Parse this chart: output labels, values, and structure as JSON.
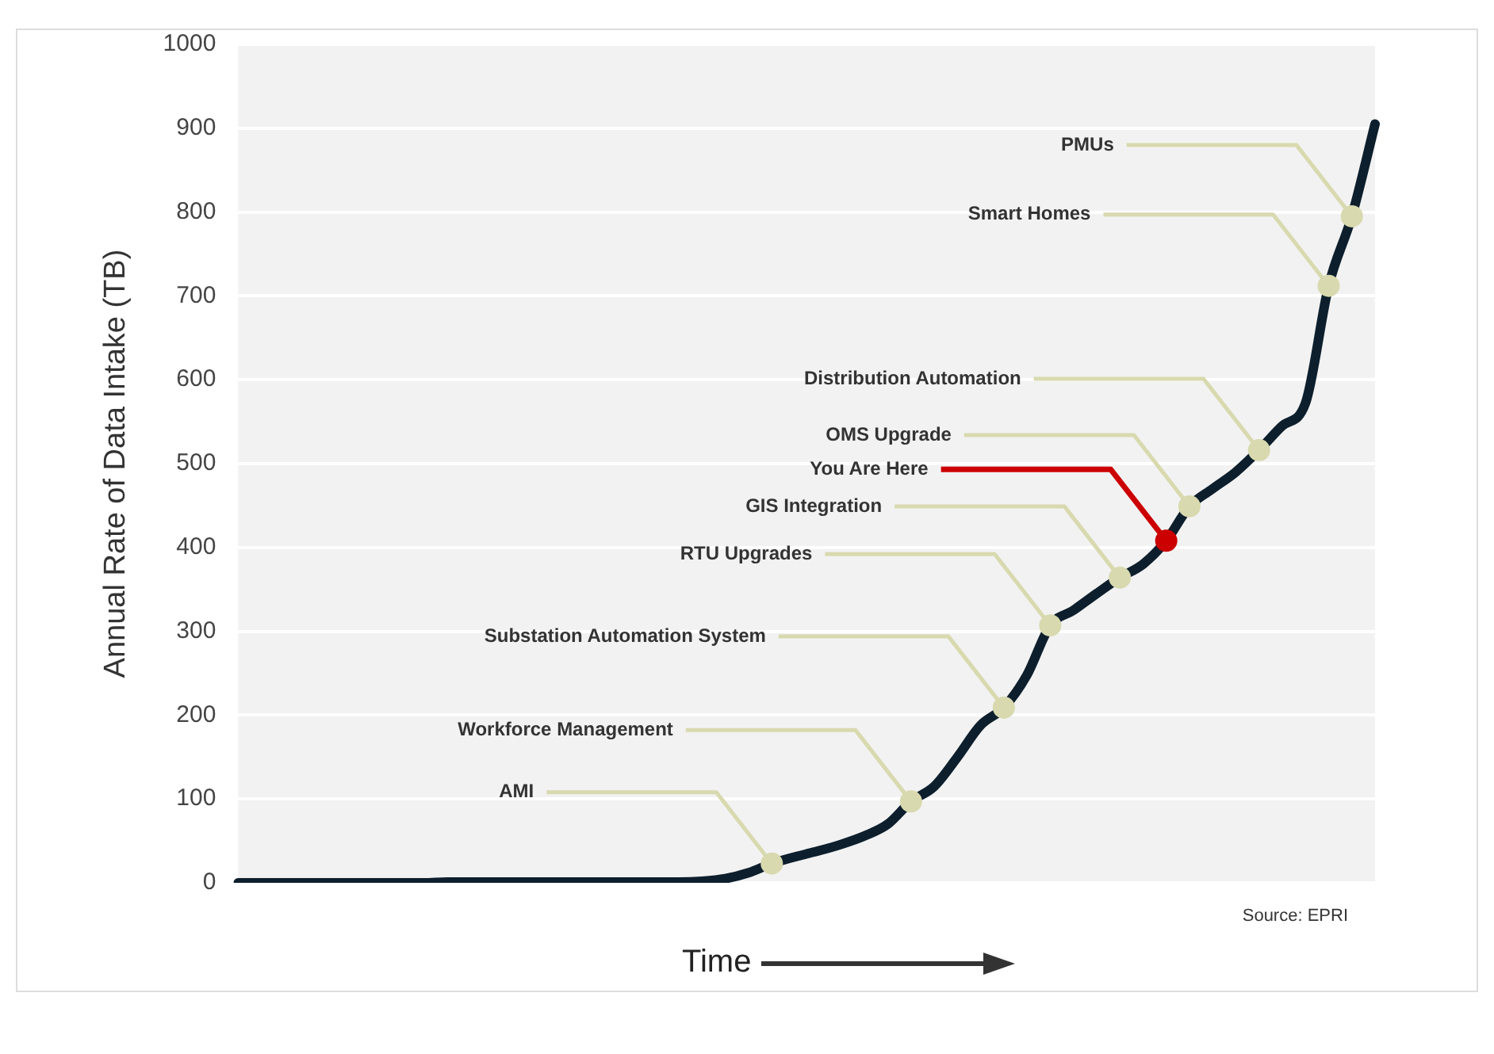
{
  "chart_data": {
    "type": "line",
    "ylabel": "Annual Rate of Data Intake (TB)",
    "xlabel": "Time",
    "categories": [
      null,
      null,
      null,
      null,
      null,
      null,
      null,
      null,
      null,
      null,
      null,
      null,
      null,
      null,
      null,
      null,
      null,
      null,
      null,
      null,
      null,
      null,
      null,
      null,
      null,
      null,
      null,
      null,
      null,
      null,
      null,
      null,
      null,
      null,
      null,
      null,
      null,
      null,
      null,
      null,
      null,
      null,
      null,
      null,
      null,
      null,
      null,
      null,
      null,
      null
    ],
    "series": [
      {
        "color": "#0d1f2d",
        "marker": "none",
        "values": [
          0,
          0,
          0,
          0,
          0,
          0,
          0,
          0,
          0,
          1,
          1,
          1,
          1,
          1,
          1,
          1,
          1,
          1,
          1,
          1,
          2,
          5,
          12,
          23,
          31,
          38,
          46,
          56,
          70,
          97,
          115,
          150,
          188,
          209,
          248,
          307,
          325,
          345,
          364,
          380,
          408,
          449,
          470,
          490,
          516,
          545,
          572,
          712,
          795,
          905
        ]
      },
      {
        "type": "scatter",
        "marker": "circle",
        "name": "AMI",
        "color": "#d8d9ae",
        "values": [
          null,
          null,
          null,
          null,
          null,
          null,
          null,
          null,
          null,
          null,
          null,
          null,
          null,
          null,
          null,
          null,
          null,
          null,
          null,
          null,
          null,
          null,
          null,
          23,
          null,
          null,
          null,
          null,
          null,
          null,
          null,
          null,
          null,
          null,
          null,
          null,
          null,
          null,
          null,
          null,
          null,
          null,
          null,
          null,
          null,
          null,
          null,
          null,
          null,
          null
        ]
      },
      {
        "type": "scatter",
        "marker": "circle",
        "name": "Workforce Management",
        "color": "#d8d9ae",
        "values": [
          null,
          null,
          null,
          null,
          null,
          null,
          null,
          null,
          null,
          null,
          null,
          null,
          null,
          null,
          null,
          null,
          null,
          null,
          null,
          null,
          null,
          null,
          null,
          null,
          null,
          null,
          null,
          null,
          null,
          97,
          null,
          null,
          null,
          null,
          null,
          null,
          null,
          null,
          null,
          null,
          null,
          null,
          null,
          null,
          null,
          null,
          null,
          null,
          null,
          null
        ]
      },
      {
        "type": "scatter",
        "marker": "circle",
        "name": "Substation Automation System",
        "color": "#d8d9ae",
        "values": [
          null,
          null,
          null,
          null,
          null,
          null,
          null,
          null,
          null,
          null,
          null,
          null,
          null,
          null,
          null,
          null,
          null,
          null,
          null,
          null,
          null,
          null,
          null,
          null,
          null,
          null,
          null,
          null,
          null,
          null,
          null,
          null,
          null,
          209,
          null,
          null,
          null,
          null,
          null,
          null,
          null,
          null,
          null,
          null,
          null,
          null,
          null,
          null,
          null,
          null
        ]
      },
      {
        "type": "scatter",
        "marker": "circle",
        "name": "RTU Upgrades",
        "color": "#d8d9ae",
        "values": [
          null,
          null,
          null,
          null,
          null,
          null,
          null,
          null,
          null,
          null,
          null,
          null,
          null,
          null,
          null,
          null,
          null,
          null,
          null,
          null,
          null,
          null,
          null,
          null,
          null,
          null,
          null,
          null,
          null,
          null,
          null,
          null,
          null,
          null,
          null,
          307,
          null,
          null,
          null,
          null,
          null,
          null,
          null,
          null,
          null,
          null,
          null,
          null,
          null,
          null
        ]
      },
      {
        "type": "scatter",
        "marker": "circle",
        "name": "GIS Integration",
        "color": "#d8d9ae",
        "values": [
          null,
          null,
          null,
          null,
          null,
          null,
          null,
          null,
          null,
          null,
          null,
          null,
          null,
          null,
          null,
          null,
          null,
          null,
          null,
          null,
          null,
          null,
          null,
          null,
          null,
          null,
          null,
          null,
          null,
          null,
          null,
          null,
          null,
          null,
          null,
          null,
          null,
          null,
          364,
          null,
          null,
          null,
          null,
          null,
          null,
          null,
          null,
          null,
          null,
          null
        ]
      },
      {
        "type": "scatter",
        "marker": "circle",
        "name": "You Are Here",
        "color": "#cc0000",
        "values": [
          null,
          null,
          null,
          null,
          null,
          null,
          null,
          null,
          null,
          null,
          null,
          null,
          null,
          null,
          null,
          null,
          null,
          null,
          null,
          null,
          null,
          null,
          null,
          null,
          null,
          null,
          null,
          null,
          null,
          null,
          null,
          null,
          null,
          null,
          null,
          null,
          null,
          null,
          null,
          null,
          408,
          null,
          null,
          null,
          null,
          null,
          null,
          null,
          null,
          null
        ]
      },
      {
        "type": "scatter",
        "marker": "circle",
        "name": "OMS Upgrade",
        "color": "#d8d9ae",
        "values": [
          null,
          null,
          null,
          null,
          null,
          null,
          null,
          null,
          null,
          null,
          null,
          null,
          null,
          null,
          null,
          null,
          null,
          null,
          null,
          null,
          null,
          null,
          null,
          null,
          null,
          null,
          null,
          null,
          null,
          null,
          null,
          null,
          null,
          null,
          null,
          null,
          null,
          null,
          null,
          null,
          null,
          449,
          null,
          null,
          null,
          null,
          null,
          null,
          null,
          null
        ]
      },
      {
        "type": "scatter",
        "marker": "circle",
        "name": "Distribution Automation",
        "color": "#d8d9ae",
        "values": [
          null,
          null,
          null,
          null,
          null,
          null,
          null,
          null,
          null,
          null,
          null,
          null,
          null,
          null,
          null,
          null,
          null,
          null,
          null,
          null,
          null,
          null,
          null,
          null,
          null,
          null,
          null,
          null,
          null,
          null,
          null,
          null,
          null,
          null,
          null,
          null,
          null,
          null,
          null,
          null,
          null,
          null,
          null,
          null,
          516,
          null,
          null,
          null,
          null,
          null
        ]
      },
      {
        "type": "scatter",
        "marker": "circle",
        "name": "Smart Homes",
        "color": "#d8d9ae",
        "values": [
          null,
          null,
          null,
          null,
          null,
          null,
          null,
          null,
          null,
          null,
          null,
          null,
          null,
          null,
          null,
          null,
          null,
          null,
          null,
          null,
          null,
          null,
          null,
          null,
          null,
          null,
          null,
          null,
          null,
          null,
          null,
          null,
          null,
          null,
          null,
          null,
          null,
          null,
          null,
          null,
          null,
          null,
          null,
          null,
          null,
          null,
          null,
          712,
          null,
          null
        ]
      },
      {
        "type": "scatter",
        "marker": "circle",
        "name": "PMUs",
        "color": "#d8d9ae",
        "values": [
          null,
          null,
          null,
          null,
          null,
          null,
          null,
          null,
          null,
          null,
          null,
          null,
          null,
          null,
          null,
          null,
          null,
          null,
          null,
          null,
          null,
          null,
          null,
          null,
          null,
          null,
          null,
          null,
          null,
          null,
          null,
          null,
          null,
          null,
          null,
          null,
          null,
          null,
          null,
          null,
          null,
          null,
          null,
          null,
          null,
          null,
          null,
          null,
          795,
          null
        ]
      }
    ],
    "ylim": [
      0,
      1000
    ],
    "yticks": [
      0,
      100,
      200,
      300,
      400,
      500,
      600,
      700,
      800,
      900,
      1000
    ],
    "grid": "y",
    "legend": false,
    "tick_labels": "y",
    "annotations": [
      "Source: EPRI"
    ]
  }
}
